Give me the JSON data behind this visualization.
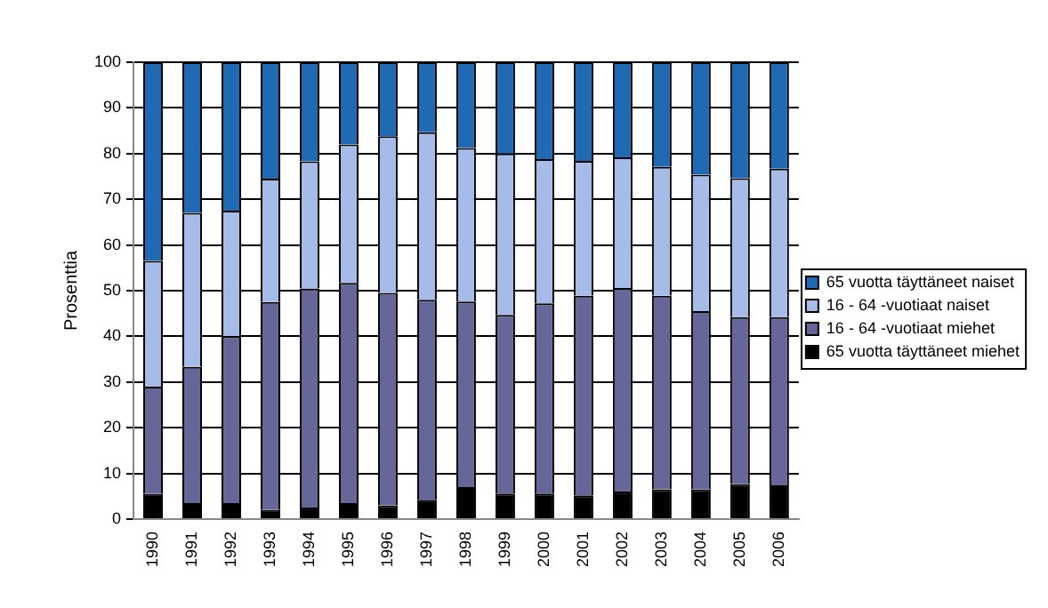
{
  "chart_data": {
    "type": "bar",
    "stacked": true,
    "ylabel": "Prosenttia",
    "categories": [
      "1990",
      "1991",
      "1992",
      "1993",
      "1994",
      "1995",
      "1996",
      "1997",
      "1998",
      "1999",
      "2000",
      "2001",
      "2002",
      "2003",
      "2004",
      "2005",
      "2006"
    ],
    "series": [
      {
        "name": "65 vuotta täyttäneet miehet",
        "color": "#000000",
        "values": [
          5.5,
          3.5,
          3.5,
          2,
          2.5,
          3.5,
          3,
          4.2,
          7,
          5.6,
          5.6,
          5.2,
          6,
          6.5,
          6.5,
          7.7,
          7.4
        ]
      },
      {
        "name": "16 - 64 -vuotiaat miehet",
        "color": "#666699",
        "values": [
          23.5,
          29.8,
          36.5,
          45.5,
          48,
          48.2,
          46.5,
          43.8,
          40.6,
          39.1,
          41.6,
          43.7,
          44.6,
          42.4,
          39,
          36.5,
          36.8
        ]
      },
      {
        "name": "16 - 64 -vuotiaat naiset",
        "color": "#a6bbe8",
        "values": [
          27.5,
          33.7,
          27.5,
          27,
          27.8,
          30.3,
          34.3,
          36.7,
          33.6,
          35.3,
          31.6,
          29.5,
          28.6,
          28.2,
          29.9,
          30.4,
          32.5
        ]
      },
      {
        "name": "65 vuotta täyttäneet naiset",
        "color": "#1f6ab3",
        "values": [
          43.5,
          33,
          32.5,
          25.5,
          21.7,
          18,
          16.2,
          15.3,
          18.8,
          20,
          21.2,
          21.6,
          20.8,
          22.9,
          24.6,
          25.4,
          23.3
        ]
      }
    ],
    "ylim": [
      0,
      100
    ],
    "yticks": [
      0,
      10,
      20,
      30,
      40,
      50,
      60,
      70,
      80,
      90,
      100
    ],
    "grid": "y",
    "legend": "right"
  }
}
